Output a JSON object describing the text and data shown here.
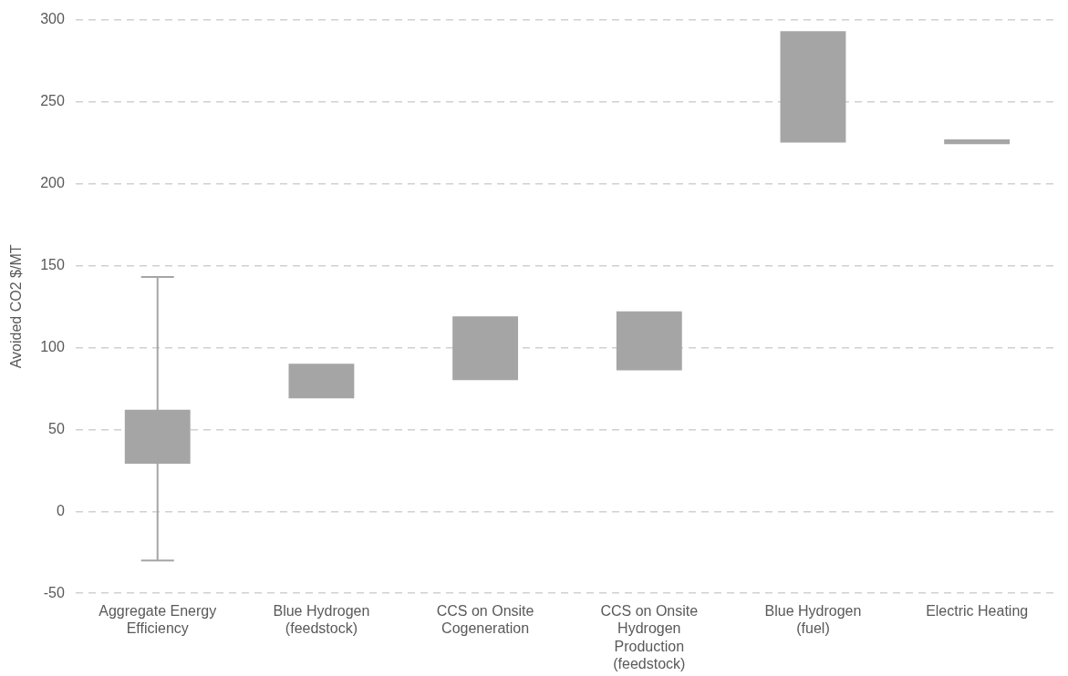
{
  "chart_data": {
    "type": "bar",
    "ylabel": "Avoided CO2 $/MT",
    "categories": [
      "Aggregate Energy Efficiency",
      "Blue Hydrogen (feedstock)",
      "CCS on Onsite Cogeneration",
      "CCS on Onsite Hydrogen Production (feedstock)",
      "Blue Hydrogen (fuel)",
      "Electric Heating"
    ],
    "base": [
      29,
      69,
      80,
      86,
      225,
      224
    ],
    "values": [
      33,
      21,
      39,
      36,
      68,
      3
    ],
    "errors": [
      [
        -30,
        143
      ],
      null,
      null,
      null,
      null,
      null
    ],
    "color": "#a5a5a5",
    "ylim": [
      -50,
      300
    ],
    "yticks": [
      -50,
      0,
      50,
      100,
      150,
      200,
      250,
      300
    ],
    "grid": "y",
    "legend": false
  }
}
